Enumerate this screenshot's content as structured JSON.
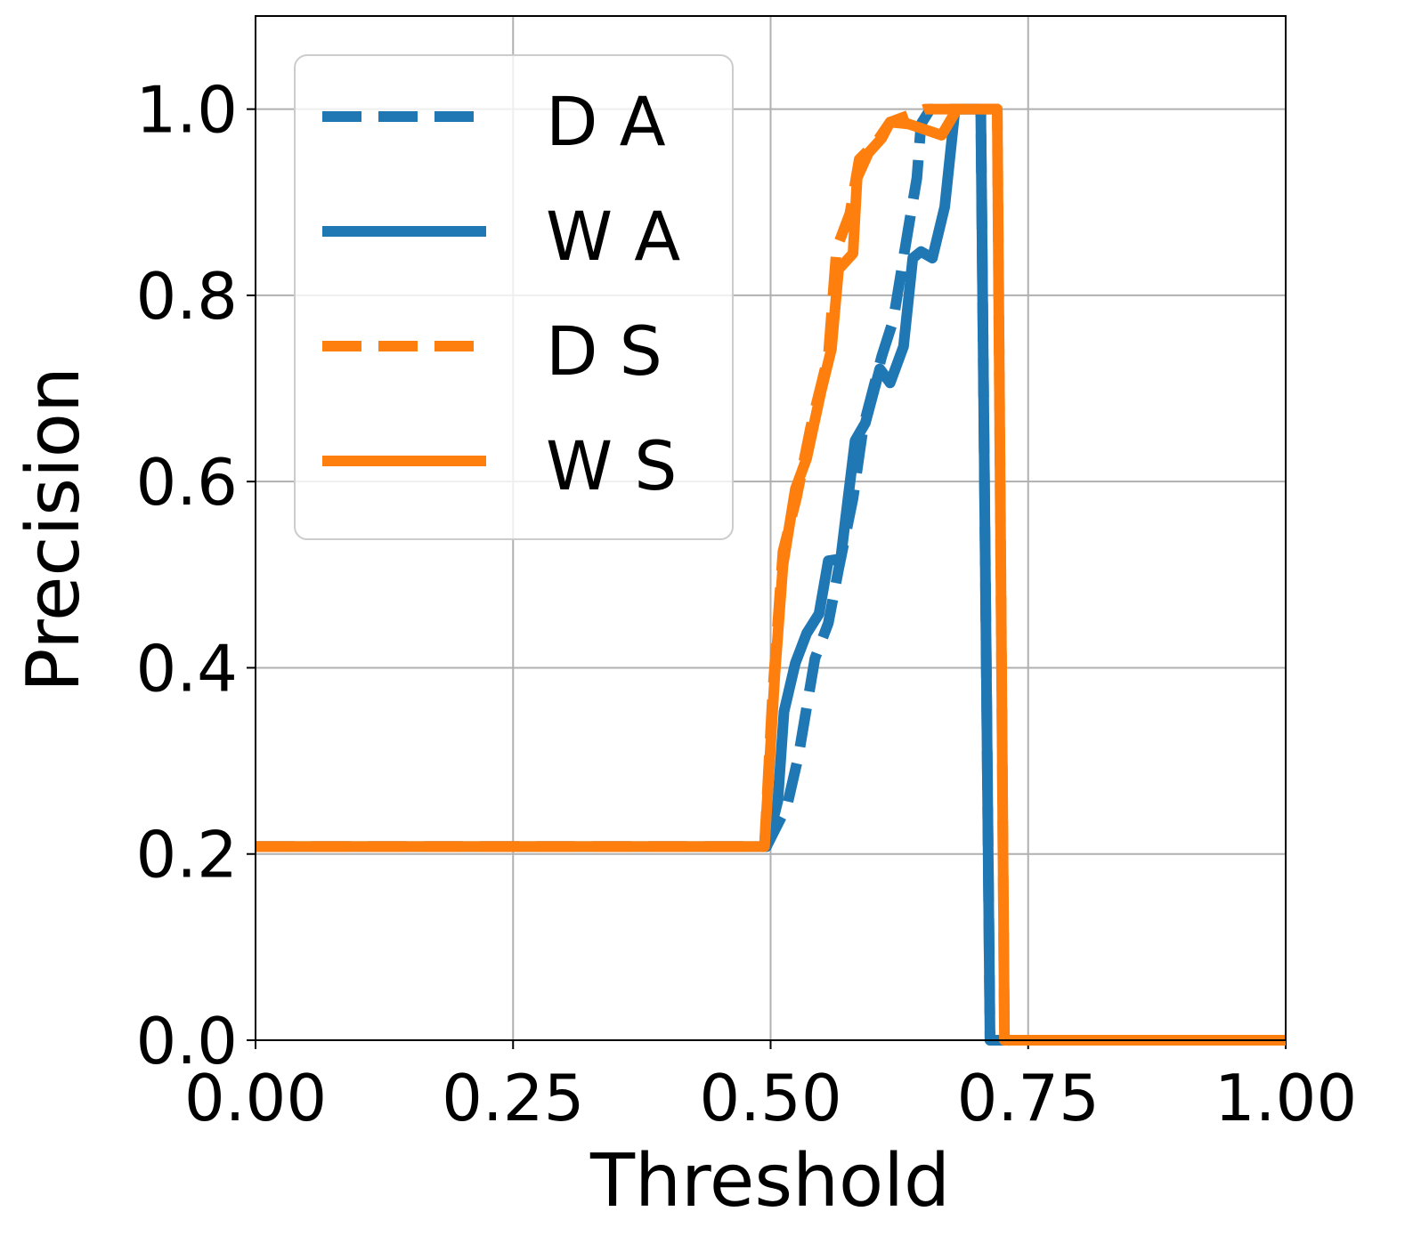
{
  "chart_data": {
    "type": "line",
    "xlabel": "Threshold",
    "ylabel": "Precision",
    "xlim": [
      0,
      1
    ],
    "ylim": [
      0,
      1.1
    ],
    "xticks": [
      {
        "value": 0,
        "label": "0.00"
      },
      0.25,
      {
        "value": 0.5,
        "label": "0.50"
      },
      0.75,
      {
        "value": 1,
        "label": "1.00"
      }
    ],
    "yticks": [
      {
        "value": 0,
        "label": "0.0"
      },
      0.2,
      0.4,
      0.6,
      0.8,
      {
        "value": 1,
        "label": "1.0"
      }
    ],
    "grid": true,
    "legend": "upper left",
    "series": [
      {
        "name": "D A",
        "color": "#1f77b4",
        "linestyle": "dashed",
        "x": [
          0,
          0.496,
          0.516,
          0.527,
          0.543,
          0.556,
          0.566,
          0.58,
          0.59,
          0.608,
          0.619,
          0.634,
          0.642,
          0.646,
          0.655,
          0.704,
          0.713,
          1.0
        ],
        "values": [
          0.208,
          0.208,
          0.252,
          0.305,
          0.41,
          0.448,
          0.506,
          0.582,
          0.659,
          0.735,
          0.773,
          0.874,
          0.926,
          0.984,
          1.0,
          1.0,
          0,
          0
        ]
      },
      {
        "name": "W A",
        "color": "#1f77b4",
        "linestyle": "solid",
        "x": [
          0,
          0.496,
          0.507,
          0.513,
          0.524,
          0.535,
          0.547,
          0.556,
          0.568,
          0.582,
          0.592,
          0.606,
          0.616,
          0.629,
          0.638,
          0.646,
          0.657,
          0.669,
          0.679,
          0.704,
          0.713,
          1.0
        ],
        "values": [
          0.208,
          0.208,
          0.257,
          0.353,
          0.405,
          0.437,
          0.458,
          0.515,
          0.517,
          0.644,
          0.663,
          0.721,
          0.706,
          0.745,
          0.84,
          0.847,
          0.84,
          0.895,
          1.0,
          1.0,
          0,
          0
        ]
      },
      {
        "name": "D S",
        "color": "#ff7f0e",
        "linestyle": "dashed",
        "x": [
          0,
          0.494,
          0.502,
          0.512,
          0.525,
          0.539,
          0.556,
          0.564,
          0.577,
          0.586,
          0.603,
          0.616,
          0.65,
          0.72,
          0.727,
          1.0
        ],
        "values": [
          0.208,
          0.208,
          0.373,
          0.525,
          0.582,
          0.659,
          0.735,
          0.85,
          0.888,
          0.946,
          0.965,
          0.986,
          1.0,
          1.0,
          0,
          0
        ]
      },
      {
        "name": "W S",
        "color": "#ff7f0e",
        "linestyle": "solid",
        "x": [
          0,
          0.494,
          0.504,
          0.512,
          0.524,
          0.535,
          0.549,
          0.559,
          0.566,
          0.58,
          0.584,
          0.595,
          0.608,
          0.616,
          0.634,
          0.666,
          0.681,
          0.72,
          0.727,
          1.0
        ],
        "values": [
          0.208,
          0.208,
          0.39,
          0.51,
          0.592,
          0.625,
          0.697,
          0.742,
          0.828,
          0.845,
          0.926,
          0.953,
          0.969,
          0.986,
          0.984,
          0.972,
          1.0,
          1.0,
          0,
          0
        ]
      }
    ]
  }
}
